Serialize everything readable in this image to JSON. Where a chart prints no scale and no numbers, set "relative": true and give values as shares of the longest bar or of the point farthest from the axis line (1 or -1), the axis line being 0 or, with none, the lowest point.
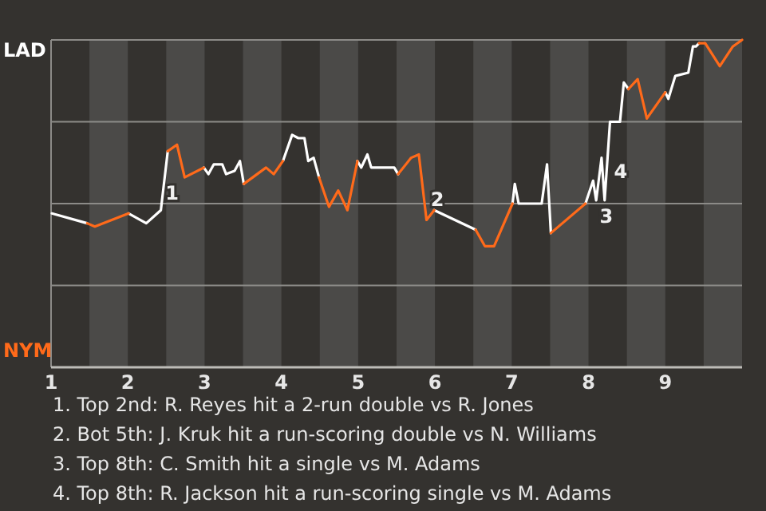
{
  "chart_data": {
    "type": "line",
    "series": [
      {
        "color": "#ffffff",
        "x": [
          1.01,
          1.47,
          null,
          2.01,
          2.24,
          2.43,
          2.52,
          null,
          2.99,
          3.05,
          3.12,
          3.23,
          3.28,
          3.39,
          3.46,
          3.51,
          null,
          4.02,
          4.14,
          4.22,
          4.3,
          4.35,
          4.42,
          4.49,
          null,
          4.99,
          5.04,
          5.12,
          5.17,
          5.47,
          5.52,
          null,
          5.99,
          6.53,
          null,
          7.01,
          7.04,
          7.09,
          7.39,
          7.46,
          7.51,
          null,
          7.96,
          8.06,
          8.1,
          8.17,
          8.21,
          8.28,
          8.41,
          8.46,
          8.52,
          null,
          9.0,
          9.04,
          9.13,
          9.3,
          9.36,
          9.4,
          9.44
        ],
        "values": [
          0.47,
          0.44,
          null,
          0.47,
          0.44,
          0.48,
          0.66,
          null,
          0.61,
          0.59,
          0.62,
          0.62,
          0.59,
          0.6,
          0.63,
          0.56,
          null,
          0.63,
          0.71,
          0.7,
          0.7,
          0.63,
          0.64,
          0.58,
          null,
          0.63,
          0.61,
          0.65,
          0.61,
          0.61,
          0.59,
          null,
          0.48,
          0.42,
          null,
          0.5,
          0.56,
          0.5,
          0.5,
          0.62,
          0.41,
          null,
          0.5,
          0.57,
          0.51,
          0.64,
          0.51,
          0.75,
          0.75,
          0.87,
          0.85,
          null,
          0.84,
          0.82,
          0.89,
          0.9,
          0.98,
          0.98,
          0.99
        ]
      },
      {
        "color": "#ff6a1a",
        "x": [
          1.47,
          1.57,
          2.01,
          null,
          2.52,
          2.64,
          2.74,
          2.99,
          null,
          3.51,
          3.8,
          3.9,
          4.02,
          null,
          4.49,
          4.62,
          4.74,
          4.86,
          4.99,
          null,
          5.52,
          5.69,
          5.79,
          5.89,
          5.99,
          null,
          6.53,
          6.65,
          6.77,
          7.01,
          null,
          7.51,
          7.96,
          null,
          8.52,
          8.64,
          8.76,
          9.0,
          null,
          9.44,
          9.52,
          9.71,
          9.88,
          10.0
        ],
        "values": [
          0.44,
          0.43,
          0.47,
          null,
          0.66,
          0.68,
          0.58,
          0.61,
          null,
          0.56,
          0.61,
          0.59,
          0.63,
          null,
          0.58,
          0.49,
          0.54,
          0.48,
          0.63,
          null,
          0.59,
          0.64,
          0.65,
          0.45,
          0.48,
          null,
          0.42,
          0.37,
          0.37,
          0.5,
          null,
          0.41,
          0.5,
          null,
          0.85,
          0.88,
          0.76,
          0.84,
          null,
          0.99,
          0.99,
          0.92,
          0.98,
          1.0
        ]
      }
    ],
    "relative": true,
    "xlim": [
      1,
      10
    ],
    "xticks": [
      1,
      2,
      3,
      4,
      5,
      6,
      7,
      8,
      9
    ],
    "grid": "y",
    "bands": [
      {
        "axis": "x",
        "from": 1.5,
        "to": 2,
        "color": "#4b4a48"
      },
      {
        "axis": "x",
        "from": 2.5,
        "to": 3,
        "color": "#4b4a48"
      },
      {
        "axis": "x",
        "from": 3.5,
        "to": 4,
        "color": "#4b4a48"
      },
      {
        "axis": "x",
        "from": 4.5,
        "to": 5,
        "color": "#4b4a48"
      },
      {
        "axis": "x",
        "from": 5.5,
        "to": 6,
        "color": "#4b4a48"
      },
      {
        "axis": "x",
        "from": 6.5,
        "to": 7,
        "color": "#4b4a48"
      },
      {
        "axis": "x",
        "from": 7.5,
        "to": 8,
        "color": "#4b4a48"
      },
      {
        "axis": "x",
        "from": 8.5,
        "to": 9,
        "color": "#4b4a48"
      },
      {
        "axis": "x",
        "from": 9.5,
        "to": 10,
        "color": "#4b4a48"
      }
    ],
    "annotations": [
      "LAD",
      "NYM",
      {
        "text": "1",
        "x": 2.43,
        "y": 0.48
      },
      {
        "text": "2",
        "x": 5.99,
        "y": 0.48
      },
      {
        "text": "3",
        "x": 8.21,
        "y": 0.51
      },
      {
        "text": "4",
        "x": 8.21,
        "y": 0.51
      },
      "1. Top 2nd: R. Reyes hit a 2-run double vs R. Jones",
      "2. Bot 5th: J. Kruk hit a run-scoring double vs N. Williams",
      "3. Top 8th: C. Smith hit a single vs M. Adams",
      "4. Top 8th: R. Jackson hit a run-scoring single vs M. Adams"
    ]
  }
}
